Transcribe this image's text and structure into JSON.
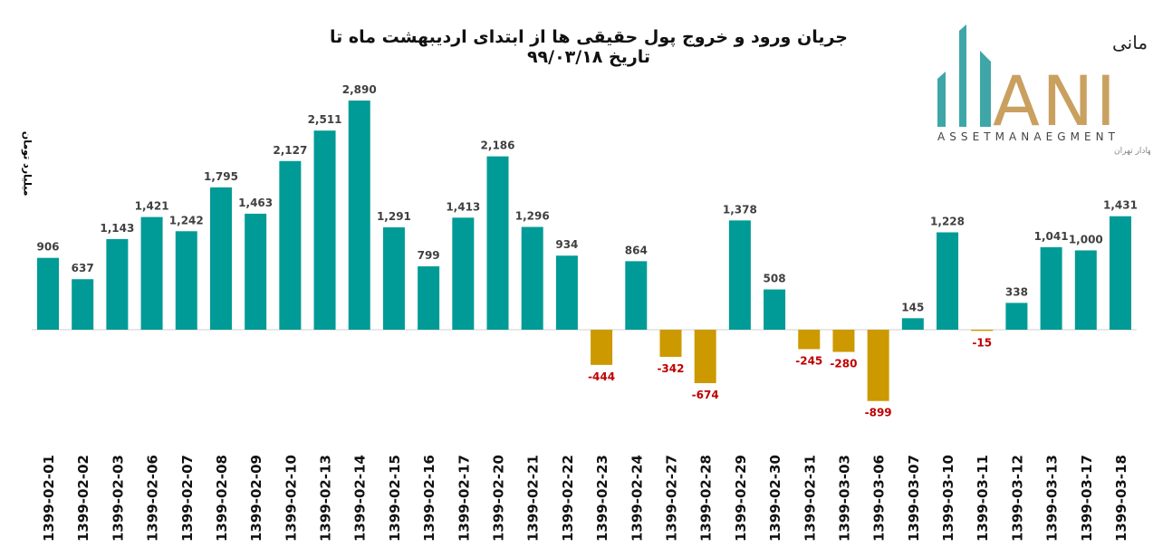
{
  "logo": {
    "brand_fa": "سبدگردان مانی",
    "brand_letters": "ANI",
    "brand_en": "ASSETMANAEGMENT",
    "tagline_fa": "تحت نظارت سازمان بورس و اوراق بهادار تهران"
  },
  "colors": {
    "positive": "#009B96",
    "negative": "#CC9900",
    "negative_label": "#C00000",
    "positive_label": "#404040"
  },
  "chart_data": {
    "type": "bar",
    "title": "جریان ورود و خروج پول حقیقی ها از ابتدای اردیبهشت ماه تا تاریخ ۹۹/۰۳/۱۸",
    "xlabel": "",
    "ylabel": "میلیارد تومان",
    "ylim": [
      -1100,
      2900
    ],
    "grid": false,
    "categories": [
      "1399-02-01",
      "1399-02-02",
      "1399-02-03",
      "1399-02-06",
      "1399-02-07",
      "1399-02-08",
      "1399-02-09",
      "1399-02-10",
      "1399-02-13",
      "1399-02-14",
      "1399-02-15",
      "1399-02-16",
      "1399-02-17",
      "1399-02-20",
      "1399-02-21",
      "1399-02-22",
      "1399-02-23",
      "1399-02-24",
      "1399-02-27",
      "1399-02-28",
      "1399-02-29",
      "1399-02-30",
      "1399-02-31",
      "1399-03-03",
      "1399-03-06",
      "1399-03-07",
      "1399-03-10",
      "1399-03-11",
      "1399-03-12",
      "1399-03-13",
      "1399-03-17",
      "1399-03-18"
    ],
    "values": [
      906,
      637,
      1143,
      1421,
      1242,
      1795,
      1463,
      2127,
      2511,
      2890,
      1291,
      799,
      1413,
      2186,
      1296,
      934,
      -444,
      864,
      -342,
      -674,
      1378,
      508,
      -245,
      -280,
      -899,
      145,
      1228,
      -15,
      338,
      1041,
      1000,
      1431
    ],
    "data_labels": [
      "906",
      "637",
      "1,143",
      "1,421",
      "1,242",
      "1,795",
      "1,463",
      "2,127",
      "2,511",
      "2,890",
      "1,291",
      "799",
      "1,413",
      "2,186",
      "1,296",
      "934",
      "-444",
      "864",
      "-342",
      "-674",
      "1,378",
      "508",
      "-245",
      "-280",
      "-899",
      "145",
      "1,228",
      "-15",
      "338",
      "1,041",
      "1,000",
      "1,431"
    ]
  }
}
